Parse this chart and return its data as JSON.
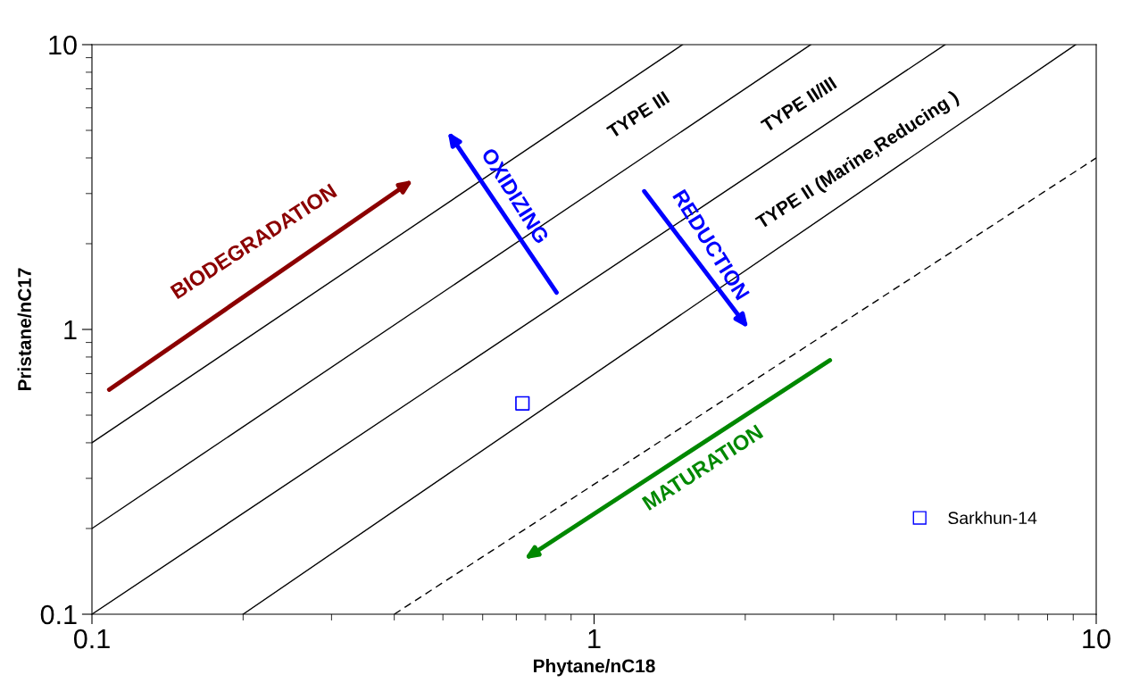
{
  "chart_data": {
    "type": "scatter",
    "xlabel": "Phytane/nC18",
    "ylabel": "Pristane/nC17",
    "log": "xy",
    "xlim": [
      0.1,
      10
    ],
    "ylim": [
      0.1,
      10
    ],
    "xticks": [
      0.1,
      1,
      10
    ],
    "yticks": [
      0.1,
      1,
      10
    ],
    "grid": false,
    "legend": "bottom right",
    "series": [
      {
        "type": "line",
        "color": "#000000",
        "x": [
          0.1,
          1.5
        ],
        "values": [
          0.4,
          10
        ],
        "line_style": "solid",
        "marker": "none"
      },
      {
        "type": "line",
        "color": "#000000",
        "x": [
          0.1,
          2.7
        ],
        "values": [
          0.2,
          10
        ],
        "line_style": "solid",
        "marker": "none"
      },
      {
        "type": "line",
        "color": "#000000",
        "x": [
          0.1,
          5
        ],
        "values": [
          0.1,
          10
        ],
        "line_style": "solid",
        "marker": "none"
      },
      {
        "type": "line",
        "color": "#000000",
        "x": [
          0.2,
          9.1
        ],
        "values": [
          0.1,
          10
        ],
        "line_style": "solid",
        "marker": "none"
      },
      {
        "type": "line",
        "color": "#000000",
        "x": [
          0.4,
          10
        ],
        "values": [
          0.1,
          4
        ],
        "line_style": "dashed",
        "marker": "none"
      },
      {
        "name": "Sarkhun-14",
        "color": "#0000ff",
        "x": [
          0.72
        ],
        "values": [
          0.55
        ],
        "marker": "square"
      }
    ],
    "annotations": [
      "TYPE III",
      "TYPE II/III",
      "TYPE II (Marine,Reducing )",
      "BIODEGRADATION",
      "OXIDIZING",
      "REDUCTION",
      "MATURATION"
    ]
  }
}
